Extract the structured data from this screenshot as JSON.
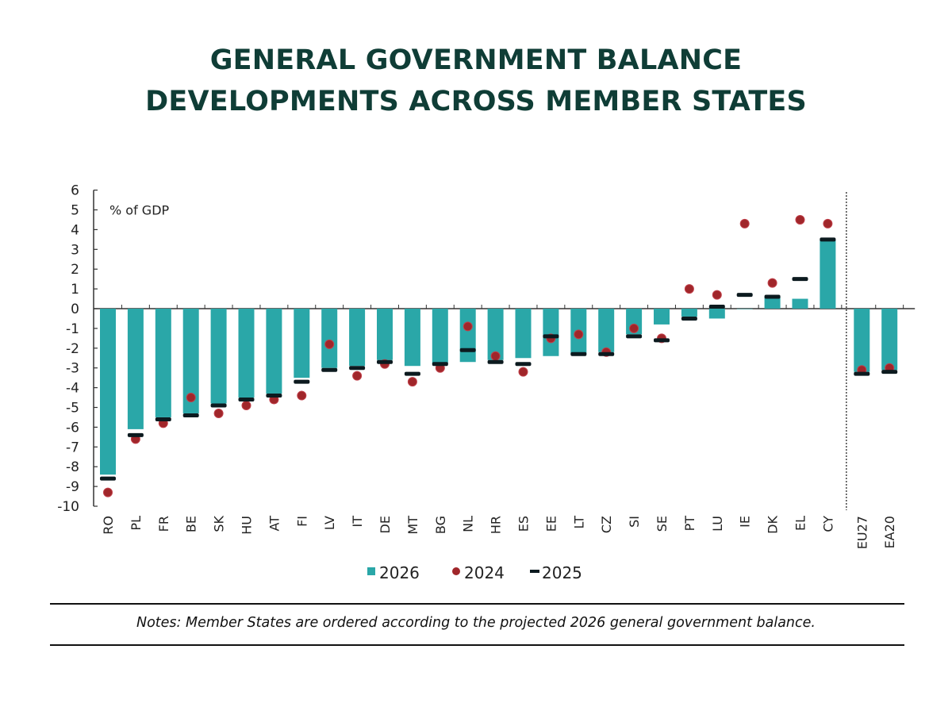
{
  "header": {
    "title_line1": "GENERAL GOVERNMENT BALANCE",
    "title_line2": "DEVELOPMENTS ACROSS MEMBER STATES"
  },
  "notes": "Notes: Member States are ordered according to the projected 2026 general government balance.",
  "colors": {
    "bar_2026": "#2aa7a8",
    "dot_2024": "#a0262a",
    "dash_2025": "#0c1a1f",
    "title": "#0f3d36"
  },
  "chart_data": {
    "type": "bar",
    "title": "General government balance developments across Member States",
    "ylabel": "% of GDP",
    "xlabel": "",
    "ylim": [
      -10,
      6
    ],
    "yticks": [
      6,
      5,
      4,
      3,
      2,
      1,
      0,
      -1,
      -2,
      -3,
      -4,
      -5,
      -6,
      -7,
      -8,
      -9,
      -10
    ],
    "grid": false,
    "legend_position": "bottom",
    "separator_after": "CY",
    "categories": [
      "RO",
      "PL",
      "FR",
      "BE",
      "SK",
      "HU",
      "AT",
      "FI",
      "LV",
      "IT",
      "DE",
      "MT",
      "BG",
      "NL",
      "HR",
      "ES",
      "EE",
      "LT",
      "CZ",
      "SI",
      "SE",
      "PT",
      "LU",
      "IE",
      "DK",
      "EL",
      "CY",
      "EU27",
      "EA20"
    ],
    "series": [
      {
        "name": "2026",
        "mark": "bar",
        "values": [
          -8.4,
          -6.1,
          -5.5,
          -5.3,
          -4.8,
          -4.5,
          -4.3,
          -3.5,
          -3.0,
          -2.9,
          -2.6,
          -2.9,
          -2.8,
          -2.7,
          -2.6,
          -2.5,
          -2.4,
          -2.3,
          -2.2,
          -1.3,
          -0.8,
          -0.4,
          -0.5,
          0.0,
          0.6,
          0.5,
          3.5,
          -3.2,
          -3.1
        ]
      },
      {
        "name": "2024",
        "mark": "dot",
        "values": [
          -9.3,
          -6.6,
          -5.8,
          -4.5,
          -5.3,
          -4.9,
          -4.6,
          -4.4,
          -1.8,
          -3.4,
          -2.8,
          -3.7,
          -3.0,
          -0.9,
          -2.4,
          -3.2,
          -1.5,
          -1.3,
          -2.2,
          -1.0,
          -1.5,
          1.0,
          0.7,
          4.3,
          1.3,
          4.5,
          4.3,
          -3.1,
          -3.0
        ]
      },
      {
        "name": "2025",
        "mark": "dash",
        "values": [
          -8.6,
          -6.4,
          -5.6,
          -5.4,
          -4.9,
          -4.6,
          -4.4,
          -3.7,
          -3.1,
          -3.0,
          -2.7,
          -3.3,
          -2.8,
          -2.1,
          -2.7,
          -2.8,
          -1.4,
          -2.3,
          -2.3,
          -1.4,
          -1.6,
          -0.5,
          0.1,
          0.7,
          0.6,
          1.5,
          3.5,
          -3.3,
          -3.2
        ]
      }
    ],
    "legend": [
      "2026",
      "2024",
      "2025"
    ]
  }
}
